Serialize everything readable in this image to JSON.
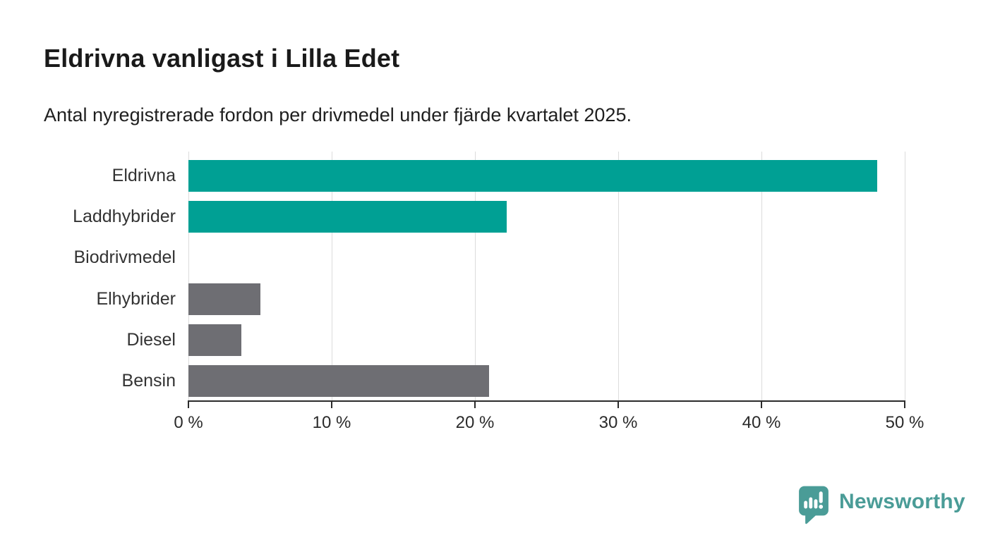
{
  "header": {
    "title": "Eldrivna vanligast i Lilla Edet",
    "subtitle": "Antal nyregistrerade fordon per drivmedel under fjärde kvartalet 2025."
  },
  "chart_data": {
    "type": "bar",
    "orientation": "horizontal",
    "title": "Eldrivna vanligast i Lilla Edet",
    "subtitle": "Antal nyregistrerade fordon per drivmedel under fjärde kvartalet 2025.",
    "categories": [
      "Eldrivna",
      "Laddhybrider",
      "Biodrivmedel",
      "Elhybrider",
      "Diesel",
      "Bensin"
    ],
    "values": [
      48.1,
      22.2,
      0,
      5.0,
      3.7,
      21.0
    ],
    "unit": "%",
    "bar_colors": [
      "#00a094",
      "#00a094",
      "#6e6e73",
      "#6e6e73",
      "#6e6e73",
      "#6e6e73"
    ],
    "xlim": [
      0,
      50
    ],
    "x_ticks": [
      0,
      10,
      20,
      30,
      40,
      50
    ],
    "x_tick_labels": [
      "0 %",
      "10 %",
      "20 %",
      "30 %",
      "40 %",
      "50 %"
    ],
    "grid": "vertical-gridlines",
    "legend": "none"
  },
  "colors": {
    "accent_teal": "#00a094",
    "bar_gray": "#6e6e73",
    "gridline": "#dcdcdc",
    "axis": "#2b2b2b",
    "title_text": "#1a1a1a",
    "label_text": "#333333",
    "brand_teal": "#4a9c97"
  },
  "footer": {
    "brand": "Newsworthy",
    "brand_icon": "speech-bubble-bar-chart-icon"
  }
}
